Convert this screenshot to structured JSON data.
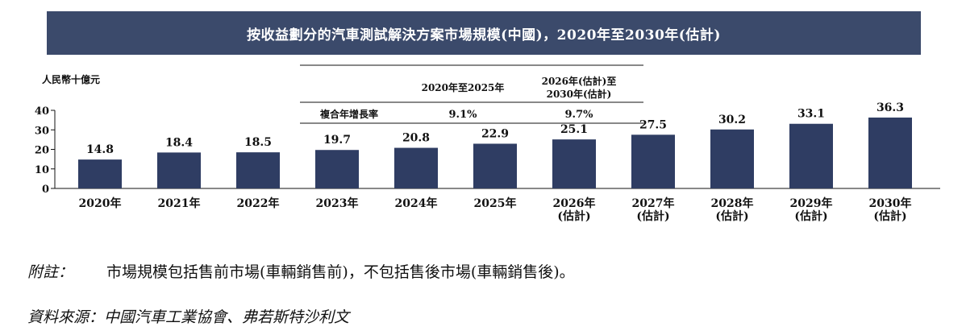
{
  "title": "按收益劃分的汽車測試解決方案市場規模(中國)，2020年至2030年(估計)",
  "chart_data": {
    "type": "bar",
    "ylabel": "人民幣十億元",
    "ylim": [
      0,
      40
    ],
    "yticks": [
      "0",
      "10",
      "20",
      "30",
      "40"
    ],
    "bar_color": "#2f3d63",
    "categories": [
      [
        "2020年"
      ],
      [
        "2021年"
      ],
      [
        "2022年"
      ],
      [
        "2023年"
      ],
      [
        "2024年"
      ],
      [
        "2025年"
      ],
      [
        "2026年",
        "(估計)"
      ],
      [
        "2027年",
        "(估計)"
      ],
      [
        "2028年",
        "(估計)"
      ],
      [
        "2029年",
        "(估計)"
      ],
      [
        "2030年",
        "(估計)"
      ]
    ],
    "values": [
      14.8,
      18.4,
      18.5,
      19.7,
      20.8,
      22.9,
      25.1,
      27.5,
      30.2,
      33.1,
      36.3
    ],
    "value_labels": [
      "14.8",
      "18.4",
      "18.5",
      "19.7",
      "20.8",
      "22.9",
      "25.1",
      "27.5",
      "30.2",
      "33.1",
      "36.3"
    ],
    "cagr_table": {
      "headers": [
        [
          "2020年至2025年"
        ],
        [
          "2026年(估計)至",
          "2030年(估計)"
        ]
      ],
      "row_label": "複合年增長率",
      "values": [
        "9.1%",
        "9.7%"
      ]
    }
  },
  "notes": {
    "label": "附註：",
    "text": "市場規模包括售前市場(車輛銷售前)，不包括售後市場(車輛銷售後)。"
  },
  "source": "資料來源：中國汽車工業協會、弗若斯特沙利文"
}
